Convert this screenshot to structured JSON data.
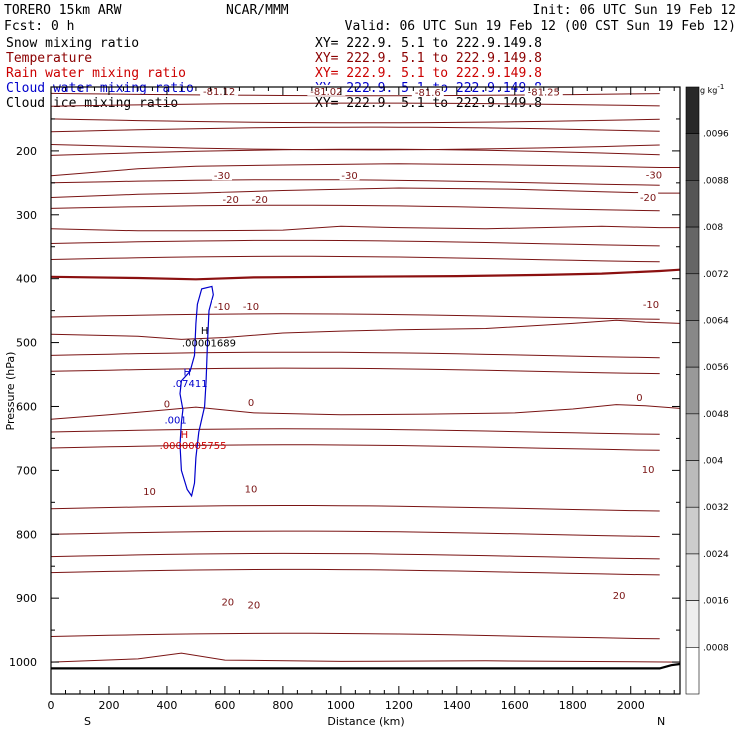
{
  "header": {
    "model": "TORERO  15km ARW",
    "center": "NCAR/MMM",
    "init": "Init: 06 UTC Sun 19 Feb 12",
    "fcst": "Fcst:    0 h",
    "valid": "Valid: 06 UTC Sun 19 Feb 12 (00 CST Sun 19 Feb 12)"
  },
  "fields": [
    {
      "name": "Snow mixing ratio",
      "xy": "XY= 222.9.  5.1 to 222.9.149.8",
      "color": "#000000"
    },
    {
      "name": "Temperature",
      "xy": "XY= 222.9.  5.1 to 222.9.149.8",
      "color": "#8b0000"
    },
    {
      "name": "Rain water mixing ratio",
      "xy": "XY= 222.9.  5.1 to 222.9.149.8",
      "color": "#cc0000"
    },
    {
      "name": "Cloud water mixing ratio",
      "xy": "XY= 222.9.  5.1 to 222.9.149.8",
      "color": "#0000cc"
    },
    {
      "name": "Cloud ice mixing ratio",
      "xy": "XY= 222.9.  5.1 to 222.9.149.8",
      "color": "#000000"
    }
  ],
  "colors": {
    "temperature": "#7a1414",
    "zero_line": "#8b1010",
    "cloud_water": "#0000cc",
    "rain": "#cc0000",
    "ice": "#000000",
    "terrain": "#000000"
  },
  "chart_data": {
    "type": "cross-section contour",
    "xlabel": "Distance (km)",
    "ylabel": "Pressure (hPa)",
    "xlim": [
      0,
      2170
    ],
    "ylim": [
      1050,
      100
    ],
    "x_ticks": [
      0,
      200,
      400,
      600,
      800,
      1000,
      1200,
      1400,
      1600,
      1800,
      2000
    ],
    "y_ticks": [
      200,
      300,
      400,
      500,
      600,
      700,
      800,
      900,
      1000
    ],
    "x_end_labels": {
      "left": "S",
      "right": "N"
    },
    "colorbar": {
      "units": "g kg",
      "units_exp": "-1",
      "ticks": [
        ".0008",
        ".0016",
        ".0024",
        ".0032",
        ".004",
        ".0048",
        ".0056",
        ".0064",
        ".0072",
        ".008",
        ".0088",
        ".0096"
      ]
    },
    "temperature_isotherms": [
      {
        "label": "-30",
        "points": [
          [
            0,
            239
          ],
          [
            300,
            228
          ],
          [
            500,
            224
          ],
          [
            800,
            222
          ],
          [
            1200,
            220
          ],
          [
            1600,
            222
          ],
          [
            1900,
            224
          ],
          [
            2100,
            226
          ],
          [
            2170,
            226
          ]
        ]
      },
      {
        "label": "-20",
        "points": [
          [
            0,
            273
          ],
          [
            300,
            268
          ],
          [
            500,
            266
          ],
          [
            800,
            262
          ],
          [
            1200,
            258
          ],
          [
            1600,
            260
          ],
          [
            1900,
            264
          ],
          [
            2100,
            266
          ],
          [
            2170,
            266
          ]
        ]
      },
      {
        "label": "-10",
        "points": [
          [
            0,
            322
          ],
          [
            300,
            325
          ],
          [
            500,
            325
          ],
          [
            800,
            324
          ],
          [
            1000,
            318
          ],
          [
            1200,
            320
          ],
          [
            1500,
            322
          ],
          [
            1900,
            318
          ],
          [
            2100,
            320
          ],
          [
            2170,
            320
          ]
        ]
      },
      {
        "label": "0",
        "points": [
          [
            0,
            397
          ],
          [
            300,
            399
          ],
          [
            500,
            401
          ],
          [
            700,
            398
          ],
          [
            1000,
            397
          ],
          [
            1400,
            396
          ],
          [
            1700,
            394
          ],
          [
            1900,
            392
          ],
          [
            2100,
            388
          ],
          [
            2170,
            386
          ]
        ]
      },
      {
        "label": "10",
        "points": [
          [
            0,
            487
          ],
          [
            300,
            490
          ],
          [
            450,
            495
          ],
          [
            600,
            492
          ],
          [
            800,
            485
          ],
          [
            1000,
            482
          ],
          [
            1200,
            480
          ],
          [
            1500,
            478
          ],
          [
            1800,
            470
          ],
          [
            1950,
            465
          ],
          [
            2050,
            468
          ],
          [
            2170,
            470
          ]
        ]
      },
      {
        "label": "20",
        "points": [
          [
            0,
            620
          ],
          [
            200,
            613
          ],
          [
            400,
            605
          ],
          [
            500,
            601
          ],
          [
            700,
            610
          ],
          [
            1000,
            613
          ],
          [
            1300,
            612
          ],
          [
            1600,
            610
          ],
          [
            1800,
            604
          ],
          [
            1950,
            597
          ],
          [
            2050,
            599
          ],
          [
            2170,
            603
          ]
        ]
      }
    ],
    "temperature_labels": [
      {
        "text": "-81.12",
        "x": 580,
        "p": 106
      },
      {
        "text": "-81.02",
        "x": 950,
        "p": 106
      },
      {
        "text": "-81.6",
        "x": 1300,
        "p": 108
      },
      {
        "text": "-81.25",
        "x": 1700,
        "p": 107
      },
      {
        "text": "-30",
        "x": 590,
        "p": 238
      },
      {
        "text": "-30",
        "x": 1030,
        "p": 238
      },
      {
        "text": "-30",
        "x": 2080,
        "p": 237
      },
      {
        "text": "-20",
        "x": 620,
        "p": 275
      },
      {
        "text": "-20",
        "x": 720,
        "p": 275
      },
      {
        "text": "-20",
        "x": 2060,
        "p": 272
      },
      {
        "text": "-10",
        "x": 590,
        "p": 443
      },
      {
        "text": "-10",
        "x": 690,
        "p": 443
      },
      {
        "text": "-10",
        "x": 2070,
        "p": 440
      },
      {
        "text": "0",
        "x": 400,
        "p": 595
      },
      {
        "text": "0",
        "x": 690,
        "p": 593
      },
      {
        "text": "0",
        "x": 2030,
        "p": 585
      },
      {
        "text": "10",
        "x": 340,
        "p": 732
      },
      {
        "text": "10",
        "x": 690,
        "p": 728
      },
      {
        "text": "10",
        "x": 2060,
        "p": 698
      },
      {
        "text": "20",
        "x": 610,
        "p": 905
      },
      {
        "text": "20",
        "x": 700,
        "p": 910
      },
      {
        "text": "20",
        "x": 1960,
        "p": 895
      }
    ],
    "cloud_water_region": [
      [
        555,
        412
      ],
      [
        520,
        416
      ],
      [
        505,
        440
      ],
      [
        500,
        470
      ],
      [
        495,
        520
      ],
      [
        480,
        545
      ],
      [
        450,
        560
      ],
      [
        445,
        580
      ],
      [
        455,
        605
      ],
      [
        450,
        625
      ],
      [
        445,
        660
      ],
      [
        450,
        700
      ],
      [
        470,
        730
      ],
      [
        485,
        740
      ],
      [
        495,
        720
      ],
      [
        500,
        680
      ],
      [
        510,
        640
      ],
      [
        530,
        600
      ],
      [
        535,
        560
      ],
      [
        540,
        500
      ],
      [
        545,
        450
      ],
      [
        560,
        425
      ],
      [
        555,
        412
      ]
    ],
    "maxima": [
      {
        "field": "ice",
        "symbol": "H",
        "value": ".00001689",
        "sym_x": 530,
        "sym_p": 480,
        "val_x": 545,
        "val_p": 500
      },
      {
        "field": "cloud_water",
        "symbol": "H",
        "value": ".07411",
        "sym_x": 470,
        "sym_p": 545,
        "val_x": 480,
        "val_p": 563
      },
      {
        "field": "cloud_water",
        "symbol": "",
        "value": ".001",
        "sym_x": 0,
        "sym_p": 0,
        "val_x": 430,
        "val_p": 620
      },
      {
        "field": "rain",
        "symbol": "H",
        "value": ".0000005755",
        "sym_x": 460,
        "sym_p": 643,
        "val_x": 490,
        "val_p": 660
      }
    ],
    "terrain": [
      [
        0,
        1010
      ],
      [
        1000,
        1010
      ],
      [
        2100,
        1010
      ],
      [
        2140,
        1005
      ],
      [
        2170,
        1003
      ]
    ]
  }
}
